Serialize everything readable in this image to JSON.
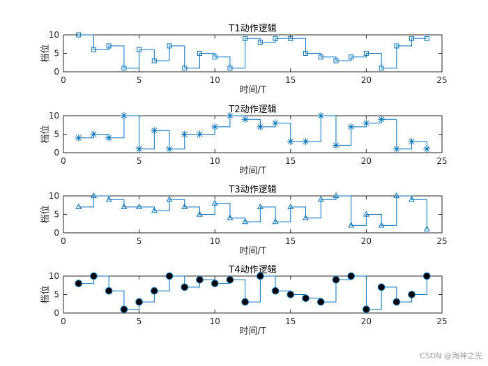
{
  "watermark": "CSDN @海神之光",
  "colors": {
    "line": "#0072BD",
    "axis": "#262626",
    "filled_marker": "#000000"
  },
  "chart_data": [
    {
      "type": "line",
      "style": "stairs",
      "title": "T1动作逻辑",
      "xlabel": "时间/T",
      "ylabel": "档位",
      "xlim": [
        0,
        25
      ],
      "ylim": [
        0,
        10
      ],
      "xticks": [
        0,
        5,
        10,
        15,
        20,
        25
      ],
      "yticks": [
        0,
        5,
        10
      ],
      "marker": "square",
      "x": [
        1,
        2,
        3,
        4,
        5,
        6,
        7,
        8,
        9,
        10,
        11,
        12,
        13,
        14,
        15,
        16,
        17,
        18,
        19,
        20,
        21,
        22,
        23,
        24
      ],
      "values": [
        10,
        6,
        7,
        1,
        6,
        3,
        7,
        1,
        5,
        4,
        1,
        9,
        8,
        9,
        9,
        5,
        4,
        3,
        4,
        5,
        1,
        7,
        9,
        9
      ]
    },
    {
      "type": "line",
      "style": "stairs",
      "title": "T2动作逻辑",
      "xlabel": "时间/T",
      "ylabel": "档位",
      "xlim": [
        0,
        25
      ],
      "ylim": [
        0,
        10
      ],
      "xticks": [
        0,
        5,
        10,
        15,
        20,
        25
      ],
      "yticks": [
        0,
        5,
        10
      ],
      "marker": "asterisk",
      "x": [
        1,
        2,
        3,
        4,
        5,
        6,
        7,
        8,
        9,
        10,
        11,
        12,
        13,
        14,
        15,
        16,
        17,
        18,
        19,
        20,
        21,
        22,
        23,
        24
      ],
      "values": [
        4,
        5,
        4,
        10,
        1,
        6,
        1,
        5,
        5,
        7,
        10,
        9,
        7,
        8,
        3,
        3,
        10,
        2,
        7,
        8,
        9,
        1,
        3,
        1
      ]
    },
    {
      "type": "line",
      "style": "stairs",
      "title": "T3动作逻辑",
      "xlabel": "时间/T",
      "ylabel": "档位",
      "xlim": [
        0,
        25
      ],
      "ylim": [
        0,
        10
      ],
      "xticks": [
        0,
        5,
        10,
        15,
        20,
        25
      ],
      "yticks": [
        0,
        5,
        10
      ],
      "marker": "triangle",
      "x": [
        1,
        2,
        3,
        4,
        5,
        6,
        7,
        8,
        9,
        10,
        11,
        12,
        13,
        14,
        15,
        16,
        17,
        18,
        19,
        20,
        21,
        22,
        23,
        24
      ],
      "values": [
        7,
        10,
        9,
        7,
        7,
        6,
        9,
        7,
        5,
        8,
        4,
        3,
        7,
        3,
        7,
        4,
        9,
        10,
        2,
        5,
        2,
        10,
        9,
        1
      ]
    },
    {
      "type": "line",
      "style": "stairs",
      "title": "T4动作逻辑",
      "xlabel": "时间/T",
      "ylabel": "档位",
      "xlim": [
        0,
        25
      ],
      "ylim": [
        0,
        10
      ],
      "xticks": [
        0,
        5,
        10,
        15,
        20,
        25
      ],
      "yticks": [
        0,
        5,
        10
      ],
      "marker": "filled-circle",
      "x": [
        1,
        2,
        3,
        4,
        5,
        6,
        7,
        8,
        9,
        10,
        11,
        12,
        13,
        14,
        15,
        16,
        17,
        18,
        19,
        20,
        21,
        22,
        23,
        24
      ],
      "values": [
        8,
        10,
        6,
        1,
        3,
        6,
        10,
        7,
        9,
        8,
        9,
        3,
        10,
        6,
        5,
        4,
        3,
        9,
        10,
        1,
        7,
        3,
        5,
        10
      ]
    }
  ]
}
